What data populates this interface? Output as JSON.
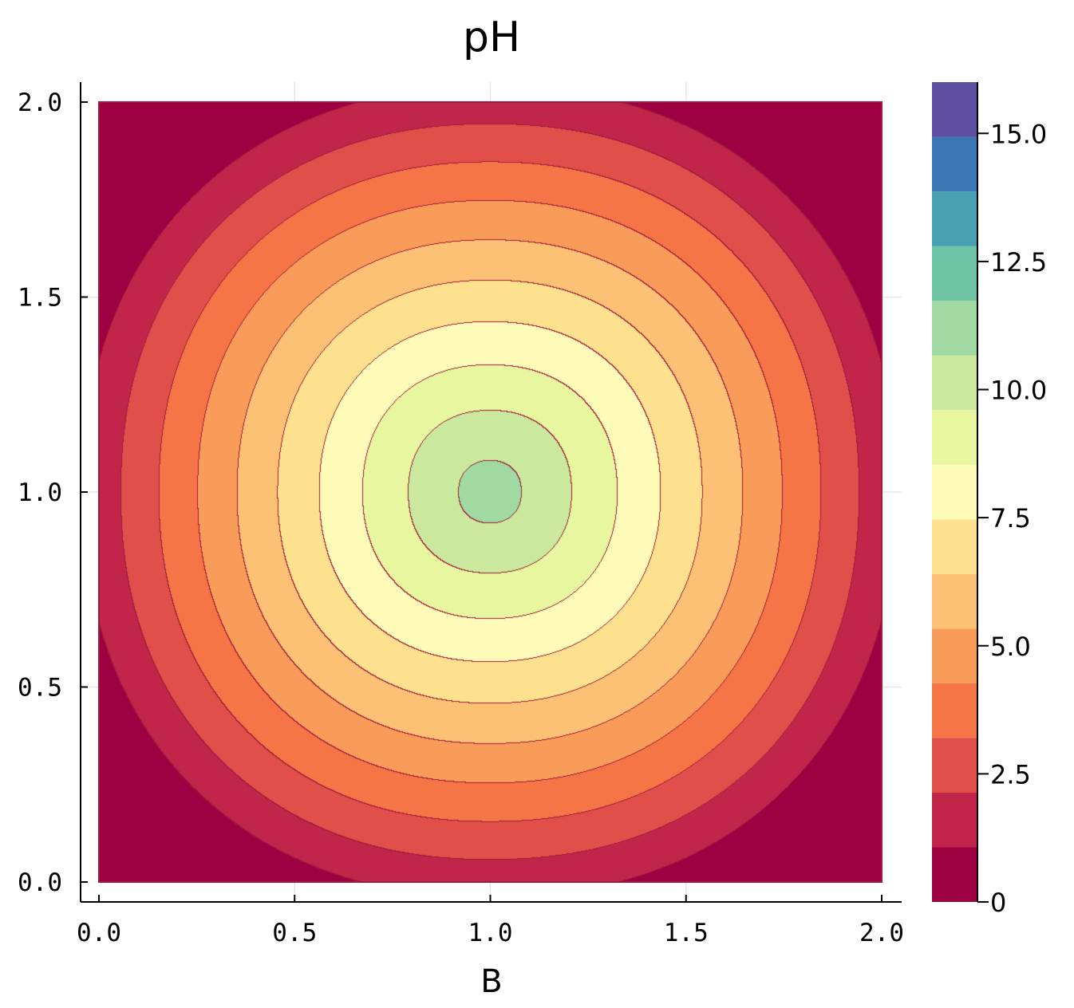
{
  "chart_data": {
    "type": "heatmap",
    "subtype": "filled-contour",
    "title": "pH",
    "xlabel": "B",
    "ylabel": "",
    "xlim": [
      0.0,
      2.0
    ],
    "ylim": [
      0.0,
      2.0
    ],
    "xticks": [
      "0.0",
      "0.5",
      "1.0",
      "1.5",
      "2.0"
    ],
    "yticks": [
      "0.0",
      "0.5",
      "1.0",
      "1.5",
      "2.0"
    ],
    "grid": true,
    "colorbar": {
      "range": [
        0,
        16
      ],
      "tick_values": [
        0,
        2.5,
        5.0,
        7.5,
        10.0,
        12.5,
        15.0
      ],
      "tick_labels": [
        "0",
        "2.5",
        "5.0",
        "7.5",
        "10.0",
        "12.5",
        "15.0"
      ],
      "levels": [
        0,
        1.066,
        2.133,
        3.2,
        4.266,
        5.333,
        6.4,
        7.466,
        8.533,
        9.6,
        10.666,
        11.733,
        12.8,
        13.866,
        14.933,
        16.0
      ],
      "colors": [
        "#9e0142",
        "#c1264a",
        "#e04f4a",
        "#f57547",
        "#f99c59",
        "#fcc174",
        "#fde18e",
        "#fefbb9",
        "#e8f6a0",
        "#cbe99e",
        "#a0d9a2",
        "#6cc4a4",
        "#47a1b2",
        "#3b77b4",
        "#5e4fa2"
      ]
    },
    "center": {
      "x": 1.0,
      "y": 1.0
    },
    "center_value": 11.2,
    "edge_value": 1.5,
    "contour_line_color": "#9e1a3c"
  }
}
